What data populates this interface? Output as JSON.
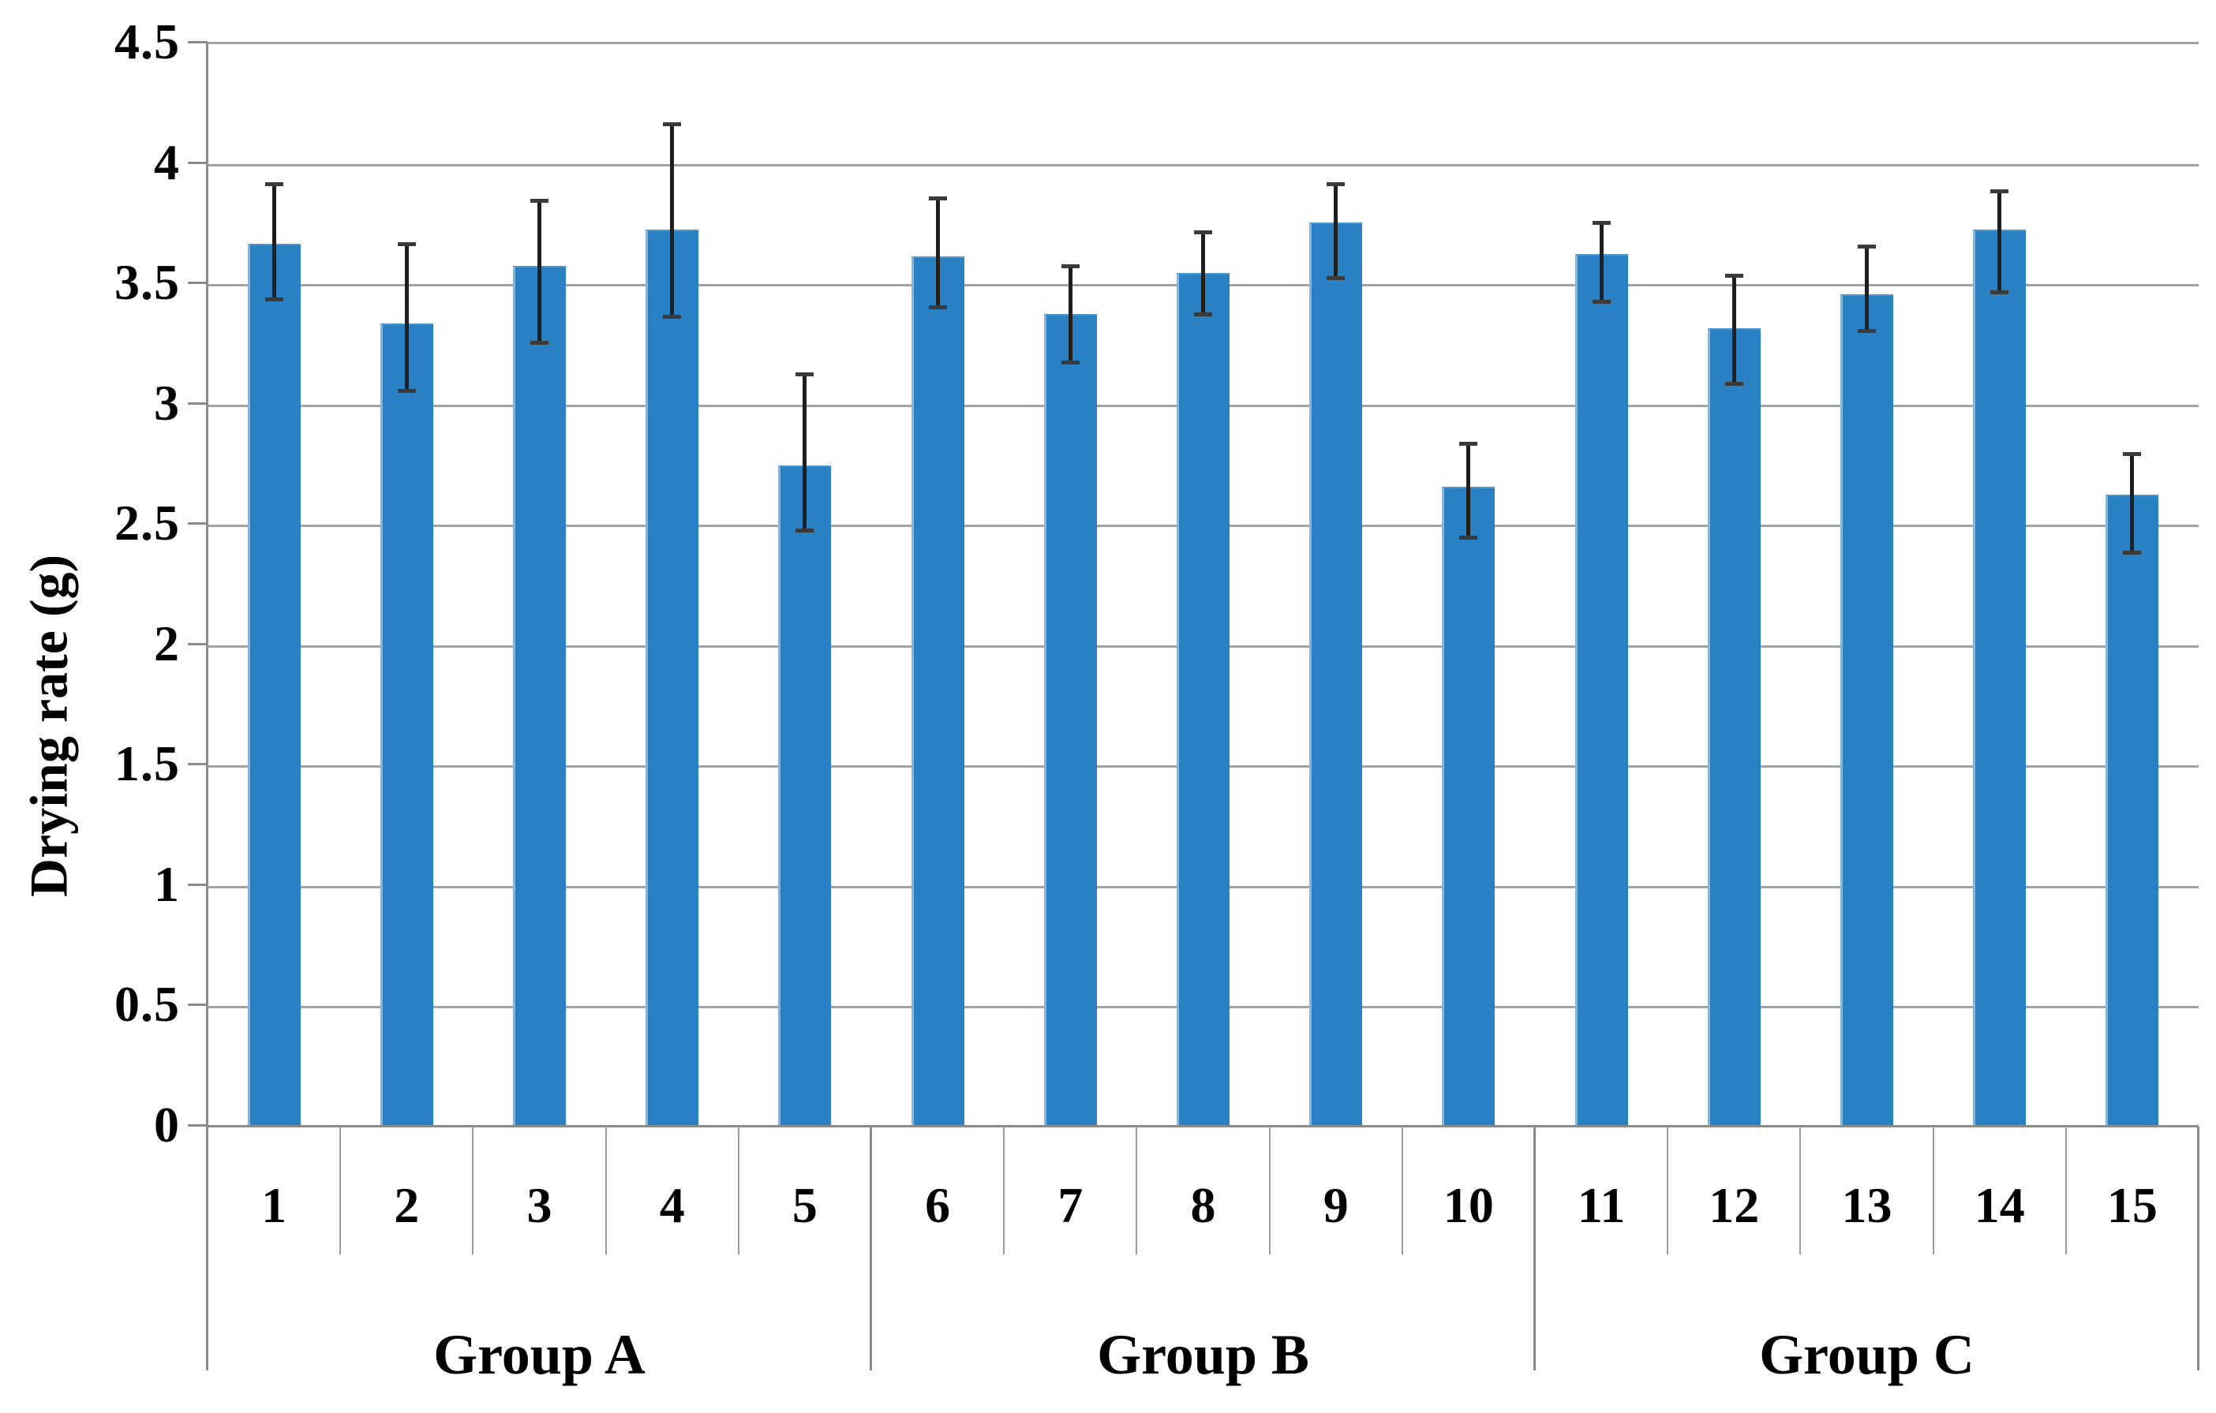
{
  "chart_data": {
    "type": "bar",
    "title": "",
    "xlabel": "",
    "ylabel": "Drying rate (g)",
    "ylim": [
      0,
      4.5
    ],
    "ytick_labels": [
      "0",
      "0.5",
      "1",
      "1.5",
      "2",
      "2.5",
      "3",
      "3.5",
      "4",
      "4.5"
    ],
    "grid": true,
    "legend": "none",
    "categories": [
      "1",
      "2",
      "3",
      "4",
      "5",
      "6",
      "7",
      "8",
      "9",
      "10",
      "11",
      "12",
      "13",
      "14",
      "15"
    ],
    "values": [
      3.66,
      3.33,
      3.57,
      3.72,
      2.74,
      3.61,
      3.37,
      3.54,
      3.75,
      2.65,
      3.62,
      3.31,
      3.45,
      3.72,
      2.62
    ],
    "error_high": [
      3.92,
      3.67,
      3.85,
      4.17,
      3.13,
      3.86,
      3.58,
      3.72,
      3.92,
      2.84,
      3.76,
      3.54,
      3.66,
      3.89,
      2.8
    ],
    "error_low": [
      3.44,
      3.06,
      3.26,
      3.37,
      2.48,
      3.41,
      3.18,
      3.38,
      3.53,
      2.45,
      3.43,
      3.09,
      3.31,
      3.47,
      2.39
    ],
    "groups": [
      {
        "label": "Group A",
        "categories": [
          "1",
          "2",
          "3",
          "4",
          "5"
        ]
      },
      {
        "label": "Group B",
        "categories": [
          "6",
          "7",
          "8",
          "9",
          "10"
        ]
      },
      {
        "label": "Group C",
        "categories": [
          "11",
          "12",
          "13",
          "14",
          "15"
        ]
      }
    ],
    "colors": {
      "bar": "#2980C2",
      "bar_edge": "#85B7DE",
      "gridline": "#A2A2A2",
      "axis": "#8B8B8B",
      "error_bar": "#1F1F1F",
      "text": "#000000",
      "background": "#FFFFFF"
    }
  }
}
